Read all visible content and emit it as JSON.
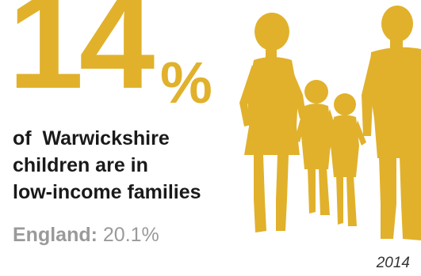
{
  "stat": {
    "value": "14",
    "unit": "%"
  },
  "headline": {
    "line1": "of  Warwickshire",
    "line2": "children are in",
    "line3": "low-income families"
  },
  "comparison": {
    "label": "England:",
    "value": "20.1%"
  },
  "year": "2014",
  "icons": {
    "family": "family-silhouette-icon"
  },
  "colors": {
    "accent": "#E1B12C",
    "text": "#1a1a1a",
    "muted": "#9a9a9a"
  }
}
